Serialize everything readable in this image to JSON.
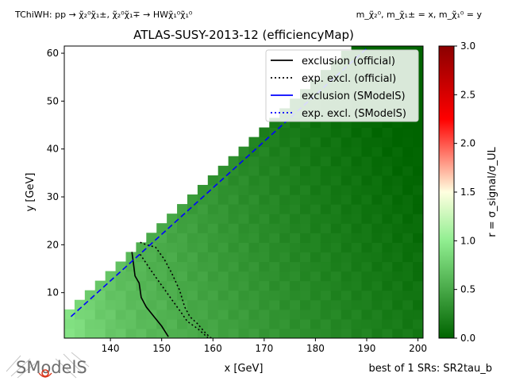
{
  "header": {
    "left_label": "TChiWH: pp → χ̃₂⁰χ̃₁±, χ̃₂⁰χ̃₁∓ → HWχ̃₁⁰χ̃₁⁰",
    "right_label": "m_χ̃₂⁰, m_χ̃₁± = x, m_χ̃₁⁰ = y"
  },
  "footer": {
    "best_sr": "best of 1 SRs: SR2tau_b",
    "logo_text": "SModelS"
  },
  "chart_data": {
    "type": "heatmap",
    "title": "ATLAS-SUSY-2013-12 (efficiencyMap)",
    "xlabel": "x [GeV]",
    "ylabel": "y [GeV]",
    "xlim": [
      131,
      201
    ],
    "ylim": [
      0.5,
      61.5
    ],
    "xticks": [
      140,
      150,
      160,
      170,
      180,
      190,
      200
    ],
    "yticks": [
      10,
      20,
      30,
      40,
      50,
      60
    ],
    "grid": false,
    "legend_position": "top-right",
    "colorbar": {
      "label": "r = σ_signal/σ_UL",
      "range": [
        0.0,
        3.0
      ],
      "ticks": [
        0.0,
        0.5,
        1.0,
        1.5,
        2.0,
        2.5,
        3.0
      ],
      "tick_labels": [
        "0.0",
        "0.5",
        "1.0",
        "1.5",
        "2.0",
        "2.5",
        "3.0"
      ],
      "colors": [
        "#006400",
        "#90ee90",
        "#ffffe0",
        "#ff0000",
        "#8b0000"
      ]
    },
    "heatmap_grid": {
      "x_start": 131,
      "x_end": 201,
      "x_step": 2,
      "y_start": 0.5,
      "y_end": 61.5,
      "y_step": 2,
      "r_min": 0.14,
      "r_max": 1.02,
      "dm_min": 0.0,
      "color_note": "r decreases with x; cells only where y < x - dm"
    },
    "series": [
      {
        "name": "exclusion (official)",
        "color": "#000000",
        "style": "solid",
        "points": [
          [
            144.2,
            18.5
          ],
          [
            144.5,
            16.0
          ],
          [
            144.8,
            13.5
          ],
          [
            145.6,
            12.0
          ],
          [
            146.0,
            9.0
          ],
          [
            147.0,
            7.0
          ],
          [
            148.5,
            5.0
          ],
          [
            150.0,
            3.0
          ],
          [
            151.3,
            0.8
          ]
        ]
      },
      {
        "name": "exp. excl. (official)",
        "color": "#000000",
        "style": "dotted",
        "points": [
          [
            145.8,
            20.5
          ],
          [
            147.0,
            20.0
          ],
          [
            148.8,
            19.5
          ],
          [
            150.5,
            17.0
          ],
          [
            152.0,
            14.0
          ],
          [
            153.5,
            10.5
          ],
          [
            154.5,
            7.0
          ],
          [
            155.5,
            5.0
          ],
          [
            157.0,
            3.5
          ],
          [
            158.6,
            1.5
          ],
          [
            160.0,
            0.2
          ]
        ]
      },
      {
        "name": "exclusion (SModelS)",
        "color": "#0000ff",
        "style": "solid",
        "points": []
      },
      {
        "name": "exp. excl. (SModelS)",
        "color": "#0000ff",
        "style": "dotted",
        "points": []
      },
      {
        "name": "",
        "color": "#0000ff",
        "style": "dashed",
        "points": [
          [
            132.3,
            5.0
          ],
          [
            190.0,
            61.0
          ]
        ]
      }
    ],
    "secondary_excl": {
      "color": "#000000",
      "style": "dotted",
      "points": [
        [
          145.8,
          18.0
        ],
        [
          148.0,
          14.5
        ],
        [
          150.0,
          11.5
        ],
        [
          152.0,
          8.5
        ],
        [
          153.7,
          6.0
        ],
        [
          155.0,
          4.0
        ],
        [
          157.0,
          2.5
        ],
        [
          159.0,
          0.6
        ]
      ]
    }
  }
}
